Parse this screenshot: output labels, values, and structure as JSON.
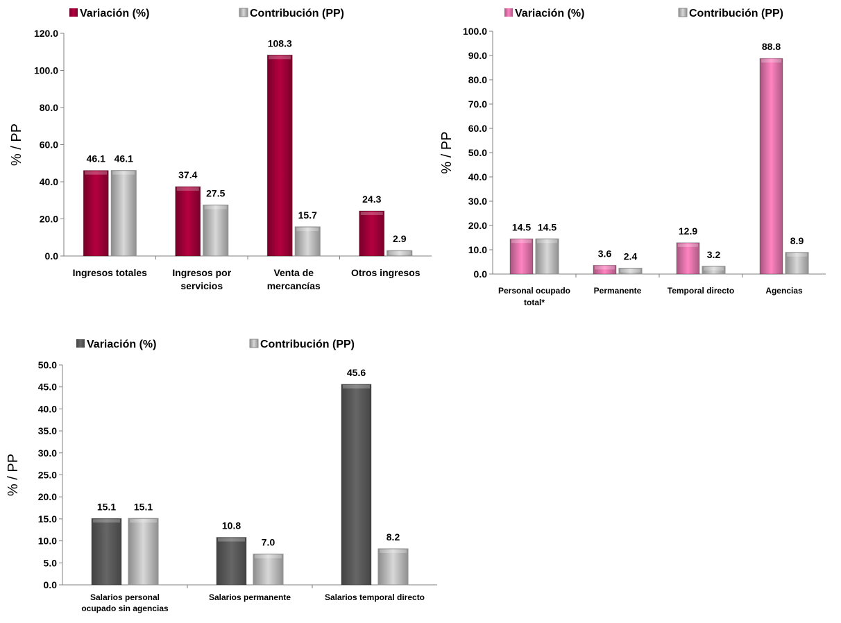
{
  "colors": {
    "variacion_crimson": "#a8003a",
    "variacion_pink": "#f07ab4",
    "variacion_gray": "#5e5e5e",
    "contribucion_gray": "#c8c8c8",
    "axis": "#7f7f7f",
    "text": "#000000"
  },
  "chart_data": [
    {
      "type": "bar",
      "ylabel": "% / PP",
      "ylim": [
        0,
        120
      ],
      "yticks": [
        "0.0",
        "20.0",
        "40.0",
        "60.0",
        "80.0",
        "100.0",
        "120.0"
      ],
      "categories": [
        [
          "Ingresos totales"
        ],
        [
          "Ingresos por",
          "servicios"
        ],
        [
          "Venta de",
          "mercancías"
        ],
        [
          "Otros ingresos"
        ]
      ],
      "series": [
        {
          "name": "Variación (%)",
          "values": [
            46.1,
            37.4,
            108.3,
            24.3
          ],
          "labels": [
            "46.1",
            "37.4",
            "108.3",
            "24.3"
          ],
          "color": "#a8003a"
        },
        {
          "name": "Contribución (PP)",
          "values": [
            46.1,
            27.5,
            15.7,
            2.9
          ],
          "labels": [
            "46.1",
            "27.5",
            "15.7",
            "2.9"
          ],
          "color": "#c8c8c8"
        }
      ],
      "legend": "top",
      "grid": false
    },
    {
      "type": "bar",
      "ylabel": "% / PP",
      "ylim": [
        0,
        100
      ],
      "yticks": [
        "0.0",
        "10.0",
        "20.0",
        "30.0",
        "40.0",
        "50.0",
        "60.0",
        "70.0",
        "80.0",
        "90.0",
        "100.0"
      ],
      "categories": [
        [
          "Personal ocupado",
          "total*"
        ],
        [
          "Permanente"
        ],
        [
          "Temporal directo"
        ],
        [
          "Agencias"
        ]
      ],
      "series": [
        {
          "name": "Variación (%)",
          "values": [
            14.5,
            3.6,
            12.9,
            88.8
          ],
          "labels": [
            "14.5",
            "3.6",
            "12.9",
            "88.8"
          ],
          "color": "#f07ab4"
        },
        {
          "name": "Contribución (PP)",
          "values": [
            14.5,
            2.4,
            3.2,
            8.9
          ],
          "labels": [
            "14.5",
            "2.4",
            "3.2",
            "8.9"
          ],
          "color": "#c8c8c8"
        }
      ],
      "legend": "top",
      "grid": false
    },
    {
      "type": "bar",
      "ylabel": "% / PP",
      "ylim": [
        0,
        50
      ],
      "yticks": [
        "0.0",
        "5.0",
        "10.0",
        "15.0",
        "20.0",
        "25.0",
        "30.0",
        "35.0",
        "40.0",
        "45.0",
        "50.0"
      ],
      "categories": [
        [
          "Salarios personal",
          "ocupado sin agencias"
        ],
        [
          "Salarios permanente"
        ],
        [
          "Salarios temporal directo"
        ]
      ],
      "series": [
        {
          "name": "Variación (%)",
          "values": [
            15.1,
            10.8,
            45.6
          ],
          "labels": [
            "15.1",
            "10.8",
            "45.6"
          ],
          "color": "#5e5e5e"
        },
        {
          "name": "Contribución (PP)",
          "values": [
            15.1,
            7.0,
            8.2
          ],
          "labels": [
            "15.1",
            "7.0",
            "8.2"
          ],
          "color": "#c8c8c8"
        }
      ],
      "legend": "top",
      "grid": false
    }
  ]
}
